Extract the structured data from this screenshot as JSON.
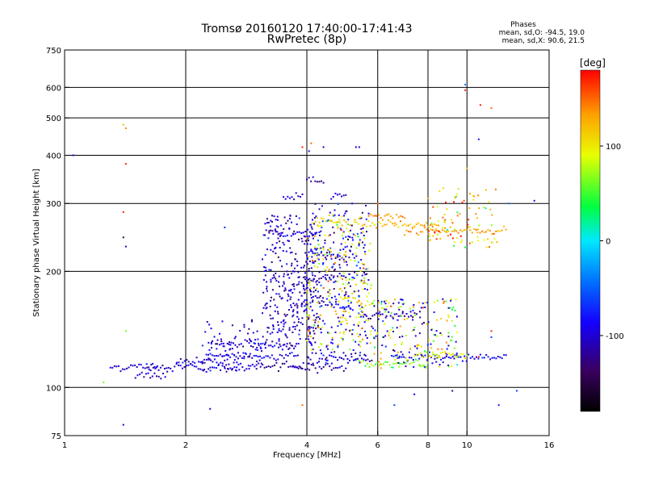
{
  "chart_data": {
    "type": "scatter",
    "title": "Tromsø 20160120 17:40:00-17:41:43",
    "subtitle": "RwPretec (8p)",
    "xlabel": "Frequency [MHz]",
    "ylabel": "Stationary phase Virtual Height [km]",
    "x_scale": "log",
    "y_scale": "log",
    "xlim": [
      1,
      16
    ],
    "ylim": [
      75,
      750
    ],
    "x_ticks": [
      1,
      2,
      4,
      6,
      8,
      10,
      16
    ],
    "y_ticks": [
      75,
      100,
      200,
      300,
      400,
      500,
      600,
      750
    ],
    "x_grid": [
      2,
      4,
      6,
      8,
      10
    ],
    "y_grid": [
      100,
      200,
      300,
      400,
      500,
      600
    ],
    "grid": true,
    "phase_box": {
      "heading": "Phases",
      "line_o": "mean, sd,O: -94.5, 19.0",
      "line_x": "mean, sd,X:  90.6, 21.5"
    },
    "colorbar": {
      "label": "[deg]",
      "range": [
        -180,
        180
      ],
      "ticks": [
        100,
        0,
        -100
      ],
      "colors": [
        "#000000",
        "#3a0060",
        "#1400ff",
        "#0070ff",
        "#00e8ff",
        "#00ff40",
        "#e8ff00",
        "#ffa000",
        "#ff0000"
      ]
    },
    "traces": [
      {
        "x0": 1.3,
        "x1": 1.7,
        "h0": 113,
        "h1": 113,
        "p": -100
      },
      {
        "x0": 1.5,
        "x1": 1.8,
        "h0": 108,
        "h1": 108,
        "p": -110
      },
      {
        "x0": 1.6,
        "x1": 2.2,
        "h0": 113,
        "h1": 113,
        "p": -100
      },
      {
        "x0": 1.9,
        "x1": 2.5,
        "h0": 117,
        "h1": 116,
        "p": -105
      },
      {
        "x0": 2.2,
        "x1": 3.0,
        "h0": 112,
        "h1": 113,
        "p": -95
      },
      {
        "x0": 2.2,
        "x1": 3.8,
        "h0": 120,
        "h1": 121,
        "p": -90
      },
      {
        "x0": 2.4,
        "x1": 3.6,
        "h0": 130,
        "h1": 128,
        "p": -100
      },
      {
        "x0": 3.0,
        "x1": 3.9,
        "h0": 113,
        "h1": 113,
        "p": -120
      },
      {
        "x0": 3.7,
        "x1": 5.0,
        "h0": 113,
        "h1": 113,
        "p": -110
      },
      {
        "x0": 4.3,
        "x1": 5.8,
        "h0": 120,
        "h1": 118,
        "p": -100
      },
      {
        "x0": 5.4,
        "x1": 8.0,
        "h0": 115,
        "h1": 115,
        "p": 60
      },
      {
        "x0": 6.5,
        "x1": 12.5,
        "h0": 120,
        "h1": 120,
        "p": -90
      },
      {
        "x0": 7.5,
        "x1": 10.0,
        "h0": 122,
        "h1": 121,
        "p": 80
      },
      {
        "x0": 4.8,
        "x1": 5.8,
        "h0": 170,
        "h1": 165,
        "p": 100
      },
      {
        "x0": 4.3,
        "x1": 5.2,
        "h0": 165,
        "h1": 160,
        "p": -100
      },
      {
        "x0": 5.5,
        "x1": 7.5,
        "h0": 155,
        "h1": 155,
        "p": -110
      },
      {
        "x0": 4.0,
        "x1": 5.0,
        "h0": 190,
        "h1": 195,
        "p": -105
      },
      {
        "x0": 4.0,
        "x1": 5.0,
        "h0": 225,
        "h1": 218,
        "p": -100
      },
      {
        "x0": 4.3,
        "x1": 5.5,
        "h0": 270,
        "h1": 265,
        "p": 110
      },
      {
        "x0": 3.3,
        "x1": 4.2,
        "h0": 250,
        "h1": 248,
        "p": -100
      },
      {
        "x0": 5.5,
        "x1": 8.5,
        "h0": 265,
        "h1": 262,
        "p": 120
      },
      {
        "x0": 7.0,
        "x1": 12.5,
        "h0": 255,
        "h1": 255,
        "p": 130
      },
      {
        "x0": 3.5,
        "x1": 3.9,
        "h0": 310,
        "h1": 315,
        "p": -95
      },
      {
        "x0": 4.0,
        "x1": 4.4,
        "h0": 350,
        "h1": 340,
        "p": -110
      },
      {
        "x0": 4.6,
        "x1": 5.0,
        "h0": 310,
        "h1": 320,
        "p": -100
      },
      {
        "x0": 5.7,
        "x1": 7.0,
        "h0": 280,
        "h1": 275,
        "p": 130
      }
    ],
    "clouds": [
      {
        "xa": 3.1,
        "xb": 4.2,
        "ha": 125,
        "hb": 280,
        "n": 260,
        "p": -105,
        "sd": 18
      },
      {
        "xa": 4.0,
        "xb": 5.7,
        "ha": 115,
        "hb": 300,
        "n": 280,
        "p": -95,
        "sd": 25
      },
      {
        "xa": 4.0,
        "xb": 5.8,
        "ha": 125,
        "hb": 280,
        "n": 200,
        "p": 100,
        "sd": 25
      },
      {
        "xa": 5.8,
        "xb": 9.5,
        "ha": 112,
        "hb": 170,
        "n": 120,
        "p": 90,
        "sd": 35
      },
      {
        "xa": 5.8,
        "xb": 9.5,
        "ha": 112,
        "hb": 170,
        "n": 90,
        "p": -100,
        "sd": 20
      },
      {
        "xa": 8.0,
        "xb": 12.0,
        "ha": 230,
        "hb": 330,
        "n": 90,
        "p": 120,
        "sd": 45
      },
      {
        "xa": 2.2,
        "xb": 3.1,
        "ha": 110,
        "hb": 150,
        "n": 80,
        "p": -100,
        "sd": 15
      },
      {
        "xa": 3.3,
        "xb": 4.3,
        "ha": 140,
        "hb": 200,
        "n": 80,
        "p": -110,
        "sd": 12
      }
    ],
    "outliers": [
      {
        "x": 1.05,
        "h": 400,
        "p": -100
      },
      {
        "x": 1.4,
        "h": 480,
        "p": 120
      },
      {
        "x": 1.42,
        "h": 470,
        "p": 140
      },
      {
        "x": 1.42,
        "h": 380,
        "p": 170
      },
      {
        "x": 1.4,
        "h": 285,
        "p": 170
      },
      {
        "x": 1.4,
        "h": 245,
        "p": -150
      },
      {
        "x": 1.42,
        "h": 232,
        "p": -120
      },
      {
        "x": 1.42,
        "h": 140,
        "p": 60
      },
      {
        "x": 1.4,
        "h": 80,
        "p": -100
      },
      {
        "x": 1.25,
        "h": 103,
        "p": 60
      },
      {
        "x": 2.5,
        "h": 260,
        "p": -70
      },
      {
        "x": 2.3,
        "h": 88,
        "p": -100
      },
      {
        "x": 3.9,
        "h": 420,
        "p": 170
      },
      {
        "x": 4.05,
        "h": 410,
        "p": -80
      },
      {
        "x": 4.1,
        "h": 430,
        "p": 150
      },
      {
        "x": 4.4,
        "h": 420,
        "p": -100
      },
      {
        "x": 5.3,
        "h": 420,
        "p": -110
      },
      {
        "x": 5.4,
        "h": 420,
        "p": -90
      },
      {
        "x": 6.0,
        "h": 300,
        "p": 150
      },
      {
        "x": 6.6,
        "h": 90,
        "p": -60
      },
      {
        "x": 7.4,
        "h": 96,
        "p": -100
      },
      {
        "x": 9.2,
        "h": 98,
        "p": -120
      },
      {
        "x": 9.9,
        "h": 610,
        "p": -40
      },
      {
        "x": 9.9,
        "h": 590,
        "p": 170
      },
      {
        "x": 10.8,
        "h": 540,
        "p": 170
      },
      {
        "x": 11.5,
        "h": 530,
        "p": 150
      },
      {
        "x": 10.7,
        "h": 440,
        "p": -80
      },
      {
        "x": 10.7,
        "h": 120,
        "p": 170
      },
      {
        "x": 11.5,
        "h": 140,
        "p": 170
      },
      {
        "x": 11.5,
        "h": 135,
        "p": -60
      },
      {
        "x": 10.0,
        "h": 370,
        "p": 120
      },
      {
        "x": 14.7,
        "h": 305,
        "p": -100
      },
      {
        "x": 12.7,
        "h": 300,
        "p": -40
      },
      {
        "x": 13.3,
        "h": 98,
        "p": -60
      },
      {
        "x": 3.9,
        "h": 90,
        "p": 150
      },
      {
        "x": 12.0,
        "h": 90,
        "p": -80
      }
    ]
  }
}
